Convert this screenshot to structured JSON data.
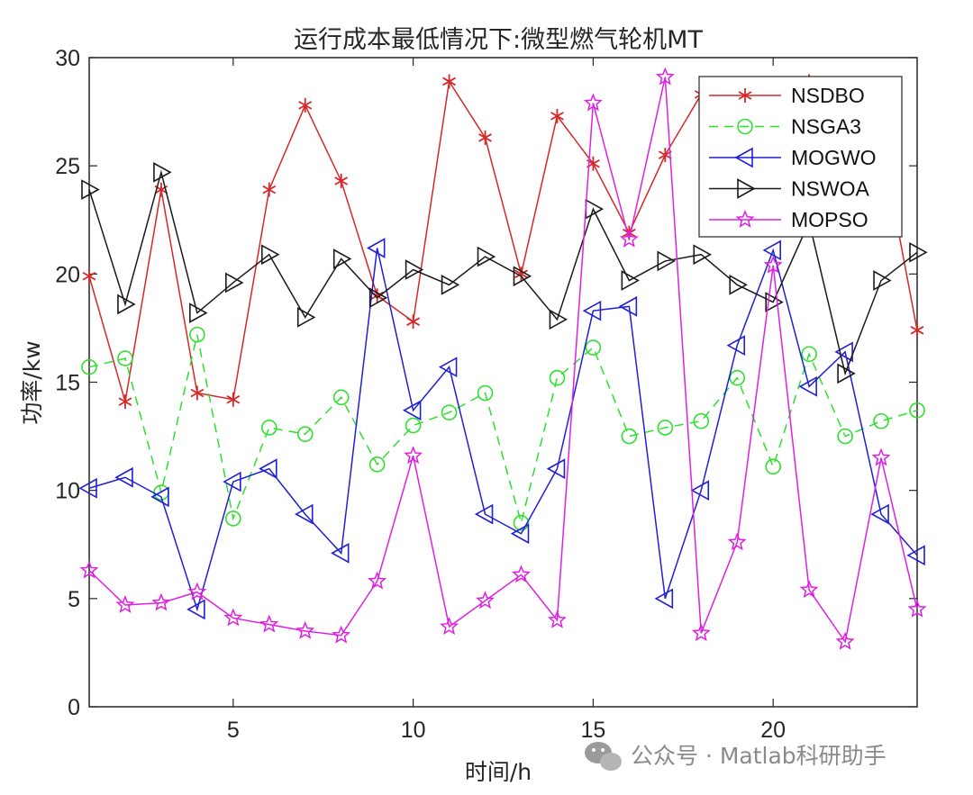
{
  "chart_data": {
    "type": "line",
    "title": "运行成本最低情况下:微型燃气轮机MT",
    "xlabel": "时间/h",
    "ylabel": "功率/kw",
    "xlim": [
      1,
      24
    ],
    "ylim": [
      0,
      30
    ],
    "xticks": [
      5,
      10,
      15,
      20
    ],
    "yticks": [
      0,
      5,
      10,
      15,
      20,
      25,
      30
    ],
    "grid": false,
    "legend_position": "top-right",
    "x": [
      1,
      2,
      3,
      4,
      5,
      6,
      7,
      8,
      9,
      10,
      11,
      12,
      13,
      14,
      15,
      16,
      17,
      18,
      19,
      20,
      21,
      22,
      23,
      24
    ],
    "series": [
      {
        "name": "NSDBO",
        "color": "#d62728",
        "marker": "asterisk",
        "dash": "solid",
        "values": [
          19.9,
          14.1,
          23.9,
          14.5,
          14.2,
          23.9,
          27.8,
          24.3,
          19.0,
          17.8,
          28.9,
          26.3,
          20.0,
          27.3,
          25.1,
          21.9,
          25.5,
          28.3,
          28.6,
          28.0,
          28.9,
          23.2,
          26.2,
          17.4
        ]
      },
      {
        "name": "NSGA3",
        "color": "#2ee02e",
        "marker": "circle",
        "dash": "dashed",
        "values": [
          15.7,
          16.1,
          9.9,
          17.2,
          8.7,
          12.9,
          12.6,
          14.3,
          11.2,
          13.0,
          13.6,
          14.5,
          8.5,
          15.2,
          16.6,
          12.5,
          12.9,
          13.2,
          15.2,
          11.1,
          16.3,
          12.5,
          13.2,
          13.7
        ]
      },
      {
        "name": "MOGWO",
        "color": "#1f1fd6",
        "marker": "triangle-left",
        "dash": "solid",
        "values": [
          10.1,
          10.6,
          9.7,
          4.5,
          10.4,
          11.0,
          8.9,
          7.1,
          21.2,
          13.7,
          15.7,
          8.9,
          8.0,
          11.0,
          18.3,
          18.5,
          5.0,
          10.0,
          16.7,
          21.1,
          14.8,
          16.4,
          8.9,
          7.0
        ]
      },
      {
        "name": "NSWOA",
        "color": "#1a1a1a",
        "marker": "triangle-right",
        "dash": "solid",
        "values": [
          23.9,
          18.6,
          24.7,
          18.2,
          19.6,
          20.9,
          18.0,
          20.7,
          18.9,
          20.2,
          19.5,
          20.8,
          19.9,
          17.9,
          23.0,
          19.7,
          20.6,
          20.9,
          19.5,
          18.7,
          22.4,
          15.4,
          19.7,
          21.0
        ]
      },
      {
        "name": "MOPSO",
        "color": "#e020e0",
        "marker": "pentagram",
        "dash": "solid",
        "values": [
          6.3,
          4.7,
          4.8,
          5.3,
          4.1,
          3.8,
          3.5,
          3.3,
          5.8,
          11.6,
          3.7,
          4.9,
          6.1,
          4.0,
          27.9,
          21.6,
          29.1,
          3.4,
          7.6,
          20.4,
          5.4,
          3.0,
          11.5,
          4.5
        ]
      }
    ]
  },
  "watermark": "公众号 · Matlab科研助手"
}
